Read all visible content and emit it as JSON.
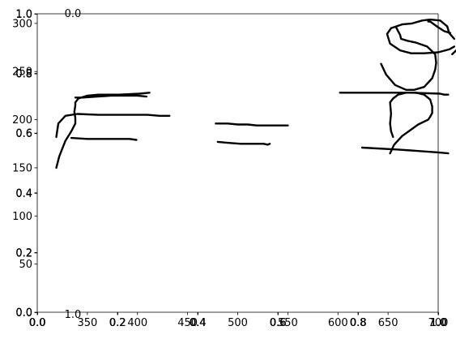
{
  "chart_data": {
    "type": "line",
    "title": "",
    "xlabel": "",
    "ylabel": "",
    "grid": false,
    "legend": "none",
    "colors": {
      "stroke": "#000000",
      "frame": "#000000",
      "background": "#ffffff"
    },
    "xlim": [
      300,
      700
    ],
    "ylim": [
      0,
      310
    ],
    "x_ticks": [
      "350",
      "400",
      "450",
      "500",
      "550",
      "600",
      "650",
      "700"
    ],
    "y_ticks": [
      "50",
      "100",
      "150",
      "200",
      "250",
      "300"
    ],
    "overlay_axes": [
      {
        "xlim": [
          0,
          1
        ],
        "ylim": [
          0,
          1
        ],
        "x_ticks": [
          "0.0",
          "0.2",
          "0.4",
          "0.6",
          "0.8",
          "1.0"
        ],
        "y_ticks": [
          "0.0",
          "0.2",
          "0.4",
          "0.6",
          "0.8",
          "1.0"
        ]
      },
      {
        "xlim": [
          0,
          1
        ],
        "ylim": [
          0,
          1
        ],
        "x_ticks": [
          "0.0",
          "0.2",
          "0.4",
          "0.6",
          "0.8",
          "1.0"
        ],
        "y_ticks": [
          "0.0",
          "0.2",
          "0.4",
          "0.6",
          "0.8",
          "1.0"
        ]
      }
    ],
    "stray_labels": [
      "0.0",
      "1.0"
    ],
    "series": [
      {
        "x": [
          319,
          321,
          328,
          340,
          361,
          392,
          410,
          422,
          432
        ],
        "y": [
          182,
          196,
          204,
          206,
          205,
          205,
          205,
          204,
          204
        ]
      },
      {
        "x": [
          319,
          322,
          328,
          334,
          338,
          338,
          337,
          338,
          338,
          341,
          350,
          361,
          382,
          402,
          412
        ],
        "y": [
          150,
          162,
          178,
          188,
          196,
          202,
          208,
          215,
          218,
          222,
          225,
          226,
          226,
          227,
          228
        ]
      },
      {
        "x": [
          334,
          350,
          370,
          392,
          399
        ],
        "y": [
          181,
          180,
          180,
          180,
          179
        ]
      },
      {
        "x": [
          338,
          345,
          360,
          374,
          388,
          400,
          409
        ],
        "y": [
          223,
          223,
          224,
          225,
          225,
          225,
          224
        ]
      },
      {
        "x": [
          478,
          490,
          500,
          510,
          519,
          531,
          550
        ],
        "y": [
          196,
          196,
          195,
          195,
          194,
          194,
          194
        ]
      },
      {
        "x": [
          480,
          490,
          503,
          518,
          526,
          530,
          532
        ],
        "y": [
          177,
          176,
          175,
          175,
          175,
          174,
          175
        ]
      },
      {
        "x": [
          602,
          640,
          672,
          702,
          706,
          710
        ],
        "y": [
          228,
          228,
          228,
          227,
          226,
          226
        ]
      },
      {
        "x": [
          624,
          660,
          700,
          710
        ],
        "y": [
          171,
          169,
          166,
          165
        ]
      },
      {
        "x": [
          643,
          648,
          657,
          668,
          676,
          686,
          694,
          697,
          698,
          697,
          689,
          678,
          669,
          663,
          662,
          660,
          658
        ],
        "y": [
          258,
          247,
          236,
          231,
          231,
          234,
          243,
          252,
          259,
          268,
          276,
          280,
          282,
          284,
          288,
          292,
          296
        ]
      },
      {
        "x": [
          652,
          656,
          664,
          680,
          690,
          692,
          694,
          694,
          692,
          686,
          678,
          668,
          660,
          655,
          652,
          653,
          652,
          653,
          655
        ],
        "y": [
          165,
          174,
          183,
          195,
          200,
          203,
          207,
          214,
          221,
          226,
          228,
          228,
          226,
          222,
          218,
          206,
          196,
          188,
          182
        ]
      },
      {
        "x": [
          690,
          692,
          696,
          700,
          706,
          712
        ],
        "y": [
          302,
          302,
          299,
          296,
          292,
          290
        ]
      },
      {
        "x": [
          716,
          711,
          709,
          702,
          692,
          684,
          674,
          664,
          653,
          649,
          652,
          662,
          673,
          686,
          700,
          711,
          716
        ],
        "y": [
          284,
          290,
          297,
          303,
          304,
          303,
          300,
          299,
          295,
          289,
          279,
          272,
          269,
          269,
          270,
          273,
          276
        ]
      },
      {
        "x": [
          714,
          718,
          723,
          728,
          734
        ],
        "y": [
          268,
          272,
          279,
          289,
          298
        ]
      }
    ]
  }
}
